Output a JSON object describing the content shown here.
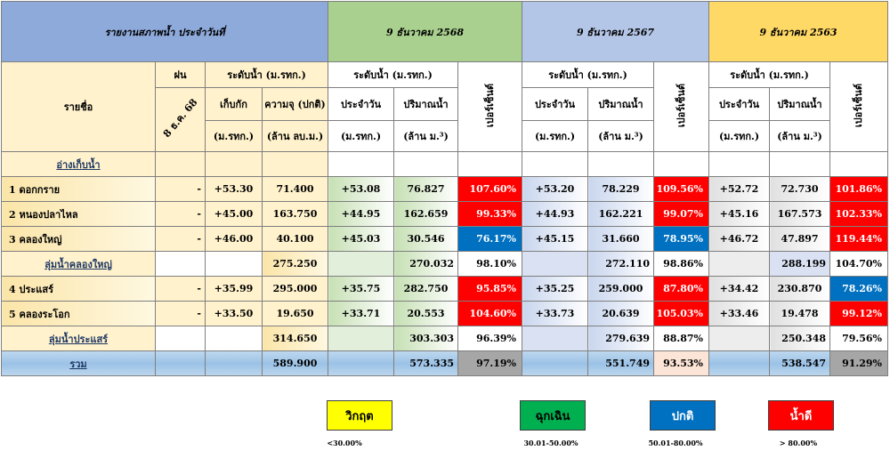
{
  "title": "รายงานสภาพน้ำ ประจำวันที่",
  "periods": [
    "9 ธันวาคม 2568",
    "9 ธันวาคม 2567",
    "9 ธันวาคม 2563"
  ],
  "headers": {
    "name": "รายชื่อ",
    "rain": "ฝน",
    "rain_date": "8 ธ.ค. 68",
    "level_group": "ระดับน้ำ (ม.รทก.)",
    "storage": "เก็บกัก",
    "storage_unit": "(ม.รทก.)",
    "capacity": "ความจุ (ปกติ)",
    "capacity_unit": "(ล้าน ลบ.ม.)",
    "daily": "ประจำวัน",
    "daily_unit": "(ม.รทก.)",
    "volume": "ปริมาณน้ำ",
    "volume_unit": "(ล้าน ม.³)",
    "percent": "เปอร์เซ็นต์"
  },
  "section_label": "อ่างเก็บน้ำ",
  "rows": [
    {
      "name": "1 ดอกกราย",
      "rain": "-",
      "storage": "+53.30",
      "capacity": "71.400",
      "p1_level": "+53.08",
      "p1_vol": "76.827",
      "p1_pct": "107.60%",
      "p2_level": "+53.20",
      "p2_vol": "78.229",
      "p2_pct": "109.56%",
      "p3_level": "+52.72",
      "p3_vol": "72.730",
      "p3_pct": "101.86%"
    },
    {
      "name": "2 หนองปลาไหล",
      "rain": "-",
      "storage": "+45.00",
      "capacity": "163.750",
      "p1_level": "+44.95",
      "p1_vol": "162.659",
      "p1_pct": "99.33%",
      "p2_level": "+44.93",
      "p2_vol": "162.221",
      "p2_pct": "99.07%",
      "p3_level": "+45.16",
      "p3_vol": "167.573",
      "p3_pct": "102.33%"
    },
    {
      "name": "3 คลองใหญ่",
      "rain": "-",
      "storage": "+46.00",
      "capacity": "40.100",
      "p1_level": "+45.03",
      "p1_vol": "30.546",
      "p1_pct": "76.17%",
      "p2_level": "+45.15",
      "p2_vol": "31.660",
      "p2_pct": "78.95%",
      "p3_level": "+46.72",
      "p3_vol": "47.897",
      "p3_pct": "119.44%"
    },
    {
      "name": "4 ประแสร์",
      "rain": "-",
      "storage": "+35.99",
      "capacity": "295.000",
      "p1_level": "+35.75",
      "p1_vol": "282.750",
      "p1_pct": "95.85%",
      "p2_level": "+35.25",
      "p2_vol": "259.000",
      "p2_pct": "87.80%",
      "p3_level": "+34.42",
      "p3_vol": "230.870",
      "p3_pct": "78.26%"
    },
    {
      "name": "5 คลองระโอก",
      "rain": "-",
      "storage": "+33.50",
      "capacity": "19.650",
      "p1_level": "+33.71",
      "p1_vol": "20.553",
      "p1_pct": "104.60%",
      "p2_level": "+33.73",
      "p2_vol": "20.639",
      "p2_pct": "105.03%",
      "p3_level": "+33.46",
      "p3_vol": "19.478",
      "p3_pct": "99.12%"
    }
  ],
  "subtotal_klongyai": {
    "name": "ลุ่มน้ำคลองใหญ่",
    "capacity": "275.250",
    "p1_vol": "270.032",
    "p1_pct": "98.10%",
    "p2_vol": "272.110",
    "p2_pct": "98.86%",
    "p3_vol": "288.199",
    "p3_pct": "104.70%"
  },
  "subtotal_prasae": {
    "name": "ลุ่มน้ำประแสร์",
    "capacity": "314.650",
    "p1_vol": "303.303",
    "p1_pct": "96.39%",
    "p2_vol": "279.639",
    "p2_pct": "88.87%",
    "p3_vol": "250.348",
    "p3_pct": "79.56%"
  },
  "total": {
    "name": "รวม",
    "capacity": "589.900",
    "p1_vol": "573.335",
    "p1_pct": "97.19%",
    "p2_vol": "551.749",
    "p2_pct": "93.53%",
    "p3_vol": "538.547",
    "p3_pct": "91.29%"
  },
  "legend": [
    {
      "label": "วิกฤต",
      "range": "<30.00%",
      "color": "#ffff00",
      "text_color": "#000000"
    },
    {
      "label": "ฉุกเฉิน",
      "range": "30.01-50.00%",
      "color": "#00b050",
      "text_color": "#000000"
    },
    {
      "label": "ปกติ",
      "range": "50.01-80.00%",
      "color": "#0070c0",
      "text_color": "#ffffff"
    },
    {
      "label": "น้ำดี",
      "range": "> 80.00%",
      "color": "#ff0000",
      "text_color": "#ffffff"
    }
  ],
  "colors": {
    "good": "#ff0000",
    "normal": "#0070c0"
  }
}
